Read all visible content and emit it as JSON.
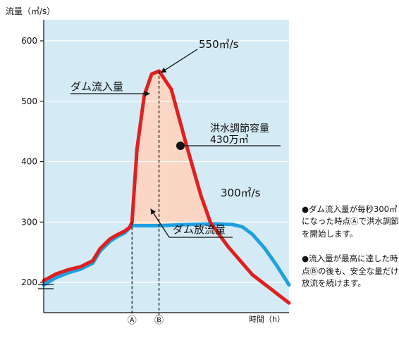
{
  "chart_data": {
    "type": "line",
    "ylabel": "流量（㎥/s）",
    "xlabel": "時間（h）",
    "ylim": [
      150,
      635
    ],
    "yticks": [
      200,
      300,
      400,
      500,
      600
    ],
    "x_markers": [
      "Ⓐ",
      "Ⓑ"
    ],
    "series": [
      {
        "name": "ダム流入量",
        "color": "#e02020",
        "points": [
          [
            0,
            203
          ],
          [
            5,
            214
          ],
          [
            10,
            221
          ],
          [
            15,
            226
          ],
          [
            20,
            236
          ],
          [
            23,
            256
          ],
          [
            27,
            272
          ],
          [
            30,
            279
          ],
          [
            33,
            285
          ],
          [
            35,
            291
          ],
          [
            36,
            300
          ],
          [
            38,
            420
          ],
          [
            41,
            510
          ],
          [
            44,
            545
          ],
          [
            47,
            550
          ],
          [
            52,
            520
          ],
          [
            58,
            430
          ],
          [
            64,
            345
          ],
          [
            68,
            299
          ],
          [
            75,
            260
          ],
          [
            85,
            213
          ],
          [
            100,
            166
          ]
        ]
      },
      {
        "name": "ダム放流量",
        "color": "#1fa0e0",
        "points": [
          [
            0,
            196
          ],
          [
            5,
            208
          ],
          [
            10,
            216
          ],
          [
            15,
            222
          ],
          [
            20,
            232
          ],
          [
            23,
            252
          ],
          [
            27,
            268
          ],
          [
            30,
            276
          ],
          [
            33,
            282
          ],
          [
            36,
            294
          ],
          [
            47,
            294
          ],
          [
            60,
            296
          ],
          [
            70,
            297
          ],
          [
            77,
            296
          ],
          [
            81,
            292
          ],
          [
            85,
            280
          ],
          [
            90,
            257
          ],
          [
            95,
            228
          ],
          [
            100,
            196
          ]
        ]
      }
    ],
    "annotations": {
      "peak": "550㎥/s",
      "threshold": "300㎥/s",
      "storage_title": "洪水調節容量",
      "storage_value": "430万㎥",
      "inflow_label": "ダム流入量",
      "outflow_label": "ダム放流量"
    },
    "colors": {
      "background": "#d4ebf5",
      "fill": "#fbd6c4"
    }
  },
  "notes": [
    "●ダム流入量が毎秒300㎥になった時点Ⓐで洪水調節を開始します。",
    "●流入量が最高に達した時点Ⓑの後も、安全な量だけ放流を続けます。"
  ]
}
